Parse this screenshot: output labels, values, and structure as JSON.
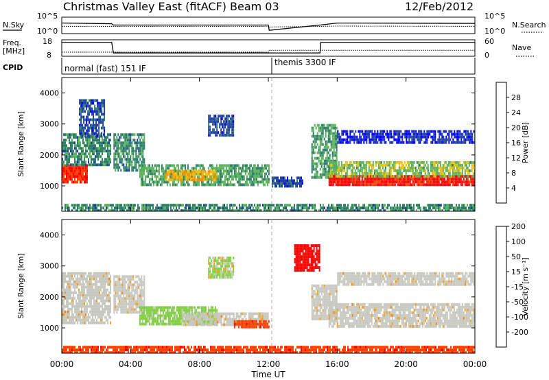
{
  "header": {
    "station": "Christmas Valley East (fitACF)",
    "beam": "Beam 03",
    "date": "12/Feb/2012"
  },
  "noise_panel": {
    "left_label": "N.Sky",
    "left_ticks": [
      "10^5",
      "10^0"
    ],
    "right_label": "N.Search",
    "right_ticks": [
      "10^5",
      "10^0"
    ]
  },
  "freq_panel": {
    "left_label_line1": "Freq.",
    "left_label_line2": "[MHz]",
    "left_ticks": [
      "18",
      "8"
    ],
    "right_label": "Nave",
    "right_ticks": [
      "60",
      "0"
    ]
  },
  "cpid_panel": {
    "label": "CPID",
    "modes": [
      {
        "name": "normal (fast) 151 IF",
        "start_hour": 0,
        "end_hour": 12
      },
      {
        "name": "themis 3300 IF",
        "start_hour": 12,
        "end_hour": 24
      }
    ]
  },
  "power_panel": {
    "ylabel": "Slant Range [km]",
    "yticks": [
      "1000",
      "2000",
      "3000",
      "4000"
    ],
    "colorbar_label": "Power [dB]",
    "colorbar_ticks": [
      "4",
      "8",
      "12",
      "16",
      "20",
      "24",
      "28"
    ]
  },
  "velocity_panel": {
    "ylabel": "Slant Range [km]",
    "yticks": [
      "1000",
      "2000",
      "3000",
      "4000"
    ],
    "colorbar_label": "Velocity [m s⁻¹]",
    "colorbar_ticks": [
      "200",
      "100",
      "50",
      "15",
      "-15",
      "-50",
      "-100",
      "-200"
    ]
  },
  "x_axis": {
    "label": "Time UT",
    "ticks": [
      "00:00",
      "04:00",
      "08:00",
      "12:00",
      "16:00",
      "20:00",
      "00:00"
    ]
  },
  "colors": {
    "power_scale": [
      "#0000ff",
      "#1f3f9f",
      "#2e7d6a",
      "#5ab25a",
      "#f0c000",
      "#ff8c00",
      "#ff4000",
      "#ff0000"
    ],
    "velocity_scale": [
      "#1f3f9f",
      "#2e7d6a",
      "#7fcf3f",
      "#c8c8c0",
      "#f0a020",
      "#ff8000",
      "#ff4000",
      "#ff0000"
    ],
    "ground_scatter": "#c8c8c0"
  },
  "chart_data": [
    {
      "type": "line",
      "name": "noise",
      "x_unit": "hour UT",
      "xlim": [
        0,
        24
      ],
      "series": [
        {
          "name": "N.Sky",
          "x": [
            0,
            0.1,
            2.9,
            3.0,
            12.0,
            12.05,
            15.0,
            16.0,
            24.0
          ],
          "values": [
            3.2,
            3.2,
            3.0,
            2.6,
            2.6,
            1.0,
            2.6,
            3.2,
            3.1
          ]
        },
        {
          "name": "N.Search",
          "x": [
            0,
            3.0,
            12.0,
            12.05,
            16.0,
            24.0
          ],
          "values": [
            2.2,
            2.2,
            2.2,
            2.0,
            2.3,
            2.2
          ]
        }
      ]
    },
    {
      "type": "line",
      "name": "frequency",
      "x_unit": "hour UT",
      "xlim": [
        0,
        24
      ],
      "series": [
        {
          "name": "Freq.",
          "x": [
            0,
            2.9,
            3.0,
            12.0,
            12.05,
            15.0,
            15.05,
            24.0
          ],
          "values": [
            16.5,
            16.5,
            10.0,
            10.0,
            10.0,
            10.0,
            16.5,
            16.5
          ]
        },
        {
          "name": "Nave",
          "x": [
            0,
            12.0,
            12.05,
            24.0
          ],
          "values": [
            15,
            15,
            22,
            22
          ]
        }
      ]
    },
    {
      "type": "heatmap",
      "name": "power",
      "x_unit": "hour UT",
      "y_unit": "km",
      "xlim": [
        0,
        24
      ],
      "ylim": [
        180,
        4500
      ],
      "zlim": [
        0,
        30
      ],
      "regions": [
        {
          "t0": 0.0,
          "t1": 1.5,
          "r0": 1100,
          "r1": 1700,
          "p": 26
        },
        {
          "t0": 0.0,
          "t1": 2.8,
          "r0": 1700,
          "r1": 2700,
          "p": 10
        },
        {
          "t0": 1.0,
          "t1": 2.5,
          "r0": 2600,
          "r1": 3800,
          "p": 6
        },
        {
          "t0": 3.0,
          "t1": 4.8,
          "r0": 1500,
          "r1": 2700,
          "p": 10
        },
        {
          "t0": 4.5,
          "t1": 12.0,
          "r0": 1050,
          "r1": 1700,
          "p": 12
        },
        {
          "t0": 6.0,
          "t1": 9.0,
          "r0": 1200,
          "r1": 1500,
          "p": 18
        },
        {
          "t0": 8.5,
          "t1": 10.0,
          "r0": 2600,
          "r1": 3300,
          "p": 6
        },
        {
          "t0": 0.0,
          "t1": 24.0,
          "r0": 180,
          "r1": 420,
          "p": 10
        },
        {
          "t0": 12.2,
          "t1": 14.0,
          "r0": 1000,
          "r1": 1300,
          "p": 6
        },
        {
          "t0": 14.5,
          "t1": 16.0,
          "r0": 1300,
          "r1": 3000,
          "p": 12
        },
        {
          "t0": 15.5,
          "t1": 24.0,
          "r0": 1050,
          "r1": 1350,
          "p": 28
        },
        {
          "t0": 15.5,
          "t1": 24.0,
          "r0": 1350,
          "r1": 1800,
          "p": 14
        },
        {
          "t0": 16.0,
          "t1": 24.0,
          "r0": 2400,
          "r1": 2800,
          "p": 4
        }
      ]
    },
    {
      "type": "heatmap",
      "name": "velocity",
      "x_unit": "hour UT",
      "y_unit": "km",
      "xlim": [
        0,
        24
      ],
      "ylim": [
        180,
        4500
      ],
      "zlim": [
        -250,
        250
      ],
      "regions": [
        {
          "t0": 0.0,
          "t1": 2.8,
          "r0": 1200,
          "r1": 2800,
          "v": 0,
          "ground": true
        },
        {
          "t0": 3.0,
          "t1": 4.8,
          "r0": 1500,
          "r1": 2700,
          "v": 0,
          "ground": true
        },
        {
          "t0": 4.5,
          "t1": 9.0,
          "r0": 1100,
          "r1": 1700,
          "v": 45
        },
        {
          "t0": 7.0,
          "t1": 12.0,
          "r0": 1100,
          "r1": 1500,
          "v": 0,
          "ground": true
        },
        {
          "t0": 10.0,
          "t1": 12.0,
          "r0": 1050,
          "r1": 1250,
          "v": -60
        },
        {
          "t0": 8.5,
          "t1": 10.0,
          "r0": 2600,
          "r1": 3300,
          "v": 30
        },
        {
          "t0": 0.0,
          "t1": 24.0,
          "r0": 180,
          "r1": 420,
          "v": -60
        },
        {
          "t0": 13.5,
          "t1": 15.0,
          "r0": 2900,
          "r1": 3700,
          "v": -180
        },
        {
          "t0": 14.5,
          "t1": 16.0,
          "r0": 1300,
          "r1": 2400,
          "v": 0,
          "ground": true
        },
        {
          "t0": 15.5,
          "t1": 24.0,
          "r0": 1050,
          "r1": 1800,
          "v": 0,
          "ground": true
        },
        {
          "t0": 16.0,
          "t1": 24.0,
          "r0": 2400,
          "r1": 2800,
          "v": 0,
          "ground": true
        }
      ]
    }
  ]
}
